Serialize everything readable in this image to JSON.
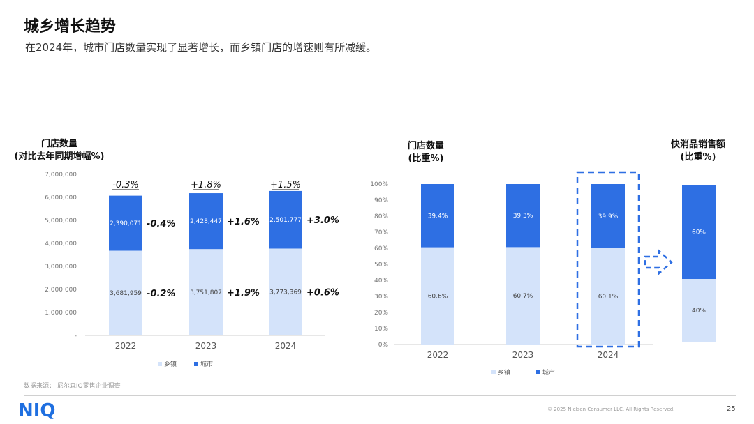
{
  "header": {
    "title": "城乡增长趋势",
    "subtitle": "在2024年，城市门店数量实现了显著增长，而乡镇门店的增速则有所减缓。"
  },
  "colors": {
    "rural": "#d4e3fa",
    "urban": "#2e6fe3",
    "accent": "#2e6fe3",
    "axis": "#888888"
  },
  "chart_data": [
    {
      "type": "bar",
      "stacked": true,
      "title_lines": [
        "门店数量",
        "(对比去年同期增幅%)"
      ],
      "categories": [
        "2022",
        "2023",
        "2024"
      ],
      "series": [
        {
          "name": "乡镇",
          "values": [
            3681959,
            3751807,
            3773369
          ],
          "labels": [
            "3,681,959",
            "3,751,807",
            "3,773,369"
          ],
          "growth": [
            "-0.2%",
            "+1.9%",
            "+0.6%"
          ]
        },
        {
          "name": "城市",
          "values": [
            2390071,
            2428447,
            2501777
          ],
          "labels": [
            "2,390,071",
            "2,428,447",
            "2,501,777"
          ],
          "growth": [
            "-0.4%",
            "+1.6%",
            "+3.0%"
          ]
        }
      ],
      "total_growth": [
        "-0.3%",
        "+1.8%",
        "+1.5%"
      ],
      "ylim": [
        0,
        7000000
      ],
      "yticks": [
        "-",
        "1,000,000",
        "2,000,000",
        "3,000,000",
        "4,000,000",
        "5,000,000",
        "6,000,000",
        "7,000,000"
      ],
      "legend": [
        "乡镇",
        "城市"
      ],
      "legend_position": "bottom"
    },
    {
      "type": "bar",
      "stacked": true,
      "title_lines": [
        "门店数量",
        "(比重%)"
      ],
      "categories": [
        "2022",
        "2023",
        "2024"
      ],
      "series": [
        {
          "name": "乡镇",
          "values": [
            60.6,
            60.7,
            60.1
          ],
          "labels": [
            "60.6%",
            "60.7%",
            "60.1%"
          ]
        },
        {
          "name": "城市",
          "values": [
            39.4,
            39.3,
            39.9
          ],
          "labels": [
            "39.4%",
            "39.3%",
            "39.9%"
          ]
        }
      ],
      "ylim": [
        0,
        100
      ],
      "yticks": [
        "0%",
        "10%",
        "20%",
        "30%",
        "40%",
        "50%",
        "60%",
        "70%",
        "80%",
        "90%",
        "100%"
      ],
      "highlight": "2024",
      "legend": [
        "乡镇",
        "城市"
      ],
      "legend_position": "bottom"
    },
    {
      "type": "bar",
      "stacked": true,
      "title_lines": [
        "快消品销售额",
        "(比重%)"
      ],
      "categories": [
        ""
      ],
      "series": [
        {
          "name": "乡镇",
          "values": [
            40
          ],
          "labels": [
            "40%"
          ]
        },
        {
          "name": "城市",
          "values": [
            60
          ],
          "labels": [
            "60%"
          ]
        }
      ]
    }
  ],
  "footer": {
    "source": "数据来源：  尼尔森IQ零售企业调查",
    "logo": "NIQ",
    "copyright": "© 2025 Nielsen Consumer LLC.  All Rights Reserved.",
    "page": "25"
  }
}
